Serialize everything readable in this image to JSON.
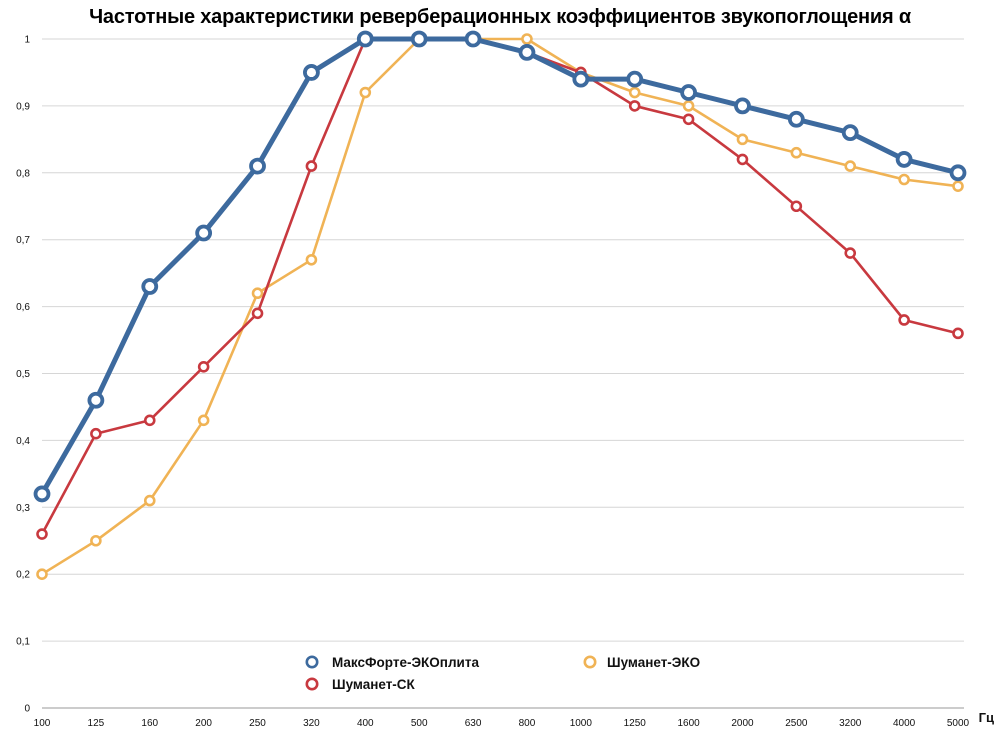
{
  "chart_data": {
    "type": "line",
    "title": "Частотные характеристики реверберационных коэффициентов звукопоглощения α",
    "xlabel": "Гц",
    "ylabel": "",
    "categories": [
      "100",
      "125",
      "160",
      "200",
      "250",
      "320",
      "400",
      "500",
      "630",
      "800",
      "1000",
      "1250",
      "1600",
      "2000",
      "2500",
      "3200",
      "4000",
      "5000"
    ],
    "ylim": [
      0,
      1
    ],
    "yticks": [
      "0",
      "0,1",
      "0,2",
      "0,3",
      "0,4",
      "0,5",
      "0,6",
      "0,7",
      "0,8",
      "0,9",
      "1"
    ],
    "grid": true,
    "legend_position": "bottom-center",
    "series": [
      {
        "name": "МаксФорте-ЭКОплита",
        "color": "#3d6a9e",
        "values": [
          0.32,
          0.46,
          0.63,
          0.71,
          0.81,
          0.95,
          1.0,
          1.0,
          1.0,
          0.98,
          0.94,
          0.94,
          0.92,
          0.9,
          0.88,
          0.86,
          0.82,
          0.8
        ]
      },
      {
        "name": "Шуманет-СК",
        "color": "#c8393f",
        "values": [
          0.26,
          0.41,
          0.43,
          0.51,
          0.59,
          0.81,
          1.0,
          1.0,
          1.0,
          0.98,
          0.95,
          0.9,
          0.88,
          0.82,
          0.75,
          0.68,
          0.58,
          0.56
        ]
      },
      {
        "name": "Шуманет-ЭКО",
        "color": "#f0b355",
        "values": [
          0.2,
          0.25,
          0.31,
          0.43,
          0.62,
          0.67,
          0.92,
          1.0,
          1.0,
          1.0,
          0.95,
          0.92,
          0.9,
          0.85,
          0.83,
          0.81,
          0.79,
          0.78
        ]
      }
    ]
  }
}
